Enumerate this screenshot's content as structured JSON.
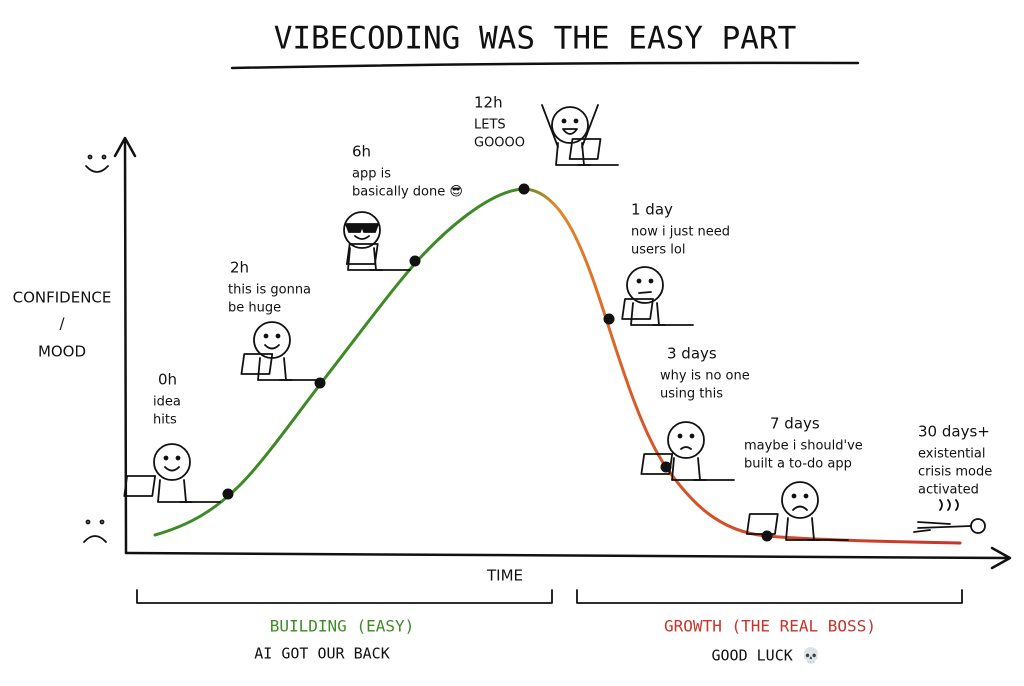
{
  "title": "VIBECODING WAS THE EASY PART",
  "y_axis_label_lines": [
    "CONFIDENCE",
    "/",
    "MOOD"
  ],
  "x_axis_label": "TIME",
  "milestones": [
    {
      "time": "0h",
      "caption_lines": [
        "idea",
        "hits"
      ]
    },
    {
      "time": "2h",
      "caption_lines": [
        "this is gonna",
        "be huge"
      ]
    },
    {
      "time": "6h",
      "caption_lines": [
        "app is",
        "basically done 😎"
      ]
    },
    {
      "time": "12h",
      "caption_lines": [
        "LETS",
        "GOOOO"
      ]
    },
    {
      "time": "1 day",
      "caption_lines": [
        "now i just need",
        "users lol"
      ]
    },
    {
      "time": "3 days",
      "caption_lines": [
        "why is no one",
        "using this"
      ]
    },
    {
      "time": "7 days",
      "caption_lines": [
        "maybe i should've",
        "built a to-do app"
      ]
    },
    {
      "time": "30 days+",
      "caption_lines": [
        "existential",
        "crisis mode",
        "activated"
      ]
    }
  ],
  "phases": [
    {
      "label": "BUILDING (EASY)",
      "note": "AI GOT OUR BACK"
    },
    {
      "label": "GROWTH (THE REAL BOSS)",
      "note": "GOOD LUCK 💀"
    }
  ]
}
